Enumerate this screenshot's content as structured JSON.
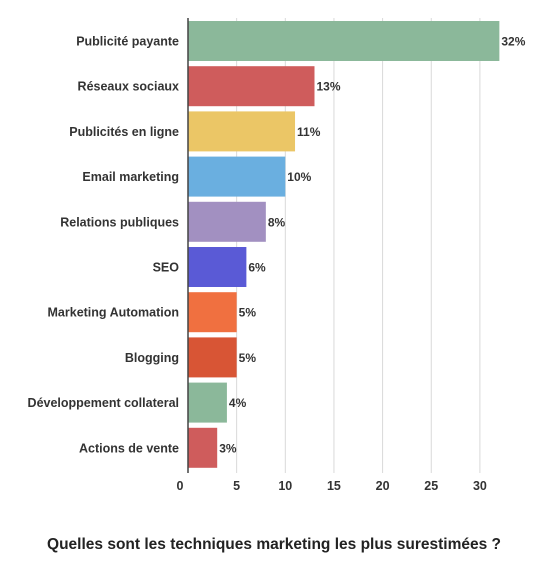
{
  "chart_data": {
    "type": "bar",
    "orientation": "horizontal",
    "title": "Quelles sont les techniques marketing les plus surestimées ?",
    "categories": [
      "Publicité payante",
      "Réseaux sociaux",
      "Publicités en ligne",
      "Email marketing",
      "Relations publiques",
      "SEO",
      "Marketing Automation",
      "Blogging",
      "Développement collateral",
      "Actions de vente"
    ],
    "values": [
      32,
      13,
      11,
      10,
      8,
      6,
      5,
      5,
      4,
      3
    ],
    "value_labels": [
      "32%",
      "13%",
      "11%",
      "10%",
      "8%",
      "6%",
      "5%",
      "5%",
      "4%",
      "3%"
    ],
    "colors": [
      "#8bb89a",
      "#cf5c5c",
      "#ebc666",
      "#6aafe0",
      "#a290c1",
      "#5a5ad6",
      "#f07040",
      "#d85535",
      "#8bb89a",
      "#cf5c5c"
    ],
    "xlim": [
      0,
      32
    ],
    "xticks": [
      0,
      5,
      10,
      15,
      20,
      25,
      30
    ],
    "grid": true,
    "legend": "none"
  }
}
